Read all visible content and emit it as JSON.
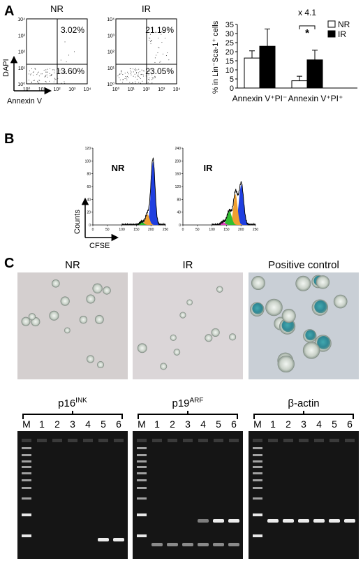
{
  "panel_labels": [
    "A",
    "B",
    "C"
  ],
  "flow_plots": {
    "y_label": "DAPI",
    "x_label": "Annexin V",
    "ticks": [
      "10⁰",
      "10¹",
      "10²",
      "10³",
      "10⁴"
    ],
    "plots": [
      {
        "title": "NR",
        "upper_right": "3.02%",
        "lower_right": "13.60%"
      },
      {
        "title": "IR",
        "upper_right": "21.19%",
        "lower_right": "23.05%"
      }
    ]
  },
  "chart_data": {
    "type": "bar",
    "y_label": "% in Lin⁻Sca-1⁺ cells",
    "categories": [
      "Annexin V⁺PI⁻",
      "Annexin V⁺PI⁺"
    ],
    "series": [
      {
        "name": "NR",
        "color": "#ffffff",
        "values": [
          16.5,
          4
        ],
        "errors": [
          4,
          2.5
        ]
      },
      {
        "name": "IR",
        "color": "#000000",
        "values": [
          23,
          15.5
        ],
        "errors": [
          9.5,
          5.3
        ]
      }
    ],
    "ylim": [
      0,
      35
    ],
    "yticks": [
      0,
      5,
      10,
      15,
      20,
      25,
      30,
      35
    ],
    "legend": "upper-right",
    "annotations": [
      "x 4.1",
      "*"
    ]
  },
  "proliferation": {
    "y_label": "Counts",
    "x_label": "CFSE",
    "plots": [
      {
        "title": "NR",
        "xlim": [
          0,
          250
        ],
        "ylim": [
          0,
          120
        ],
        "xticks": [
          0,
          50,
          100,
          150,
          200,
          250
        ],
        "yticks": [
          0,
          20,
          40,
          60,
          80,
          100,
          120
        ]
      },
      {
        "title": "IR",
        "xlim": [
          0,
          250
        ],
        "ylim": [
          0,
          240
        ],
        "xticks": [
          0,
          50,
          100,
          150,
          200,
          250
        ],
        "yticks": [
          0,
          40,
          80,
          120,
          160,
          200,
          240
        ]
      }
    ]
  },
  "staining": {
    "labels": [
      "NR",
      "IR",
      "Positive control"
    ]
  },
  "gels": {
    "lanes": [
      "M",
      "1",
      "2",
      "3",
      "4",
      "5",
      "6"
    ],
    "panels": [
      {
        "name": "p16",
        "sup": "INK"
      },
      {
        "name": "p19",
        "sup": "ARF"
      },
      {
        "name": "β-actin"
      }
    ]
  }
}
